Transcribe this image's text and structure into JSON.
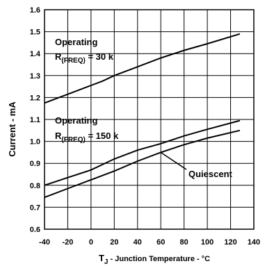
{
  "chart_data": {
    "type": "line",
    "xlabel_prefix": "T",
    "xlabel_sub": "J",
    "xlabel_rest": " - Junction Temperature - °C",
    "ylabel": "Current - mA",
    "xlim": [
      -40,
      140
    ],
    "ylim": [
      0.6,
      1.6
    ],
    "xticks": [
      -40,
      -20,
      0,
      20,
      40,
      60,
      80,
      100,
      120,
      140
    ],
    "yticks": [
      0.6,
      0.7,
      0.8,
      0.9,
      1.0,
      1.1,
      1.2,
      1.3,
      1.4,
      1.5,
      1.6
    ],
    "ytick_labels": [
      "0.6",
      "0.7",
      "0.8",
      "0.9",
      "1.0",
      "1.1",
      "1.2",
      "1.3",
      "1.4",
      "1.5",
      "1.6"
    ],
    "grid": true,
    "series": [
      {
        "x": [
          -40,
          -20,
          0,
          10,
          20,
          40,
          60,
          80,
          100,
          128
        ],
        "y": [
          1.175,
          1.215,
          1.255,
          1.275,
          1.3,
          1.34,
          1.38,
          1.415,
          1.445,
          1.49
        ]
      },
      {
        "x": [
          -40,
          -20,
          0,
          20,
          40,
          60,
          80,
          100,
          128
        ],
        "y": [
          0.8,
          0.835,
          0.87,
          0.92,
          0.96,
          0.99,
          1.025,
          1.055,
          1.095
        ]
      },
      {
        "x": [
          -40,
          -20,
          0,
          20,
          40,
          60,
          80,
          100,
          128
        ],
        "y": [
          0.745,
          0.785,
          0.825,
          0.865,
          0.91,
          0.95,
          0.985,
          1.015,
          1.05
        ]
      }
    ],
    "annotations": {
      "op30_line1": "Operating",
      "op30_r": "R",
      "op30_sub": "(FREQ)",
      "op30_rest": " = 30 k",
      "op150_line1": "Operating",
      "op150_r": "R",
      "op150_sub": "(FREQ)",
      "op150_rest": " = 150 k",
      "quiescent": "Quiescent"
    }
  }
}
